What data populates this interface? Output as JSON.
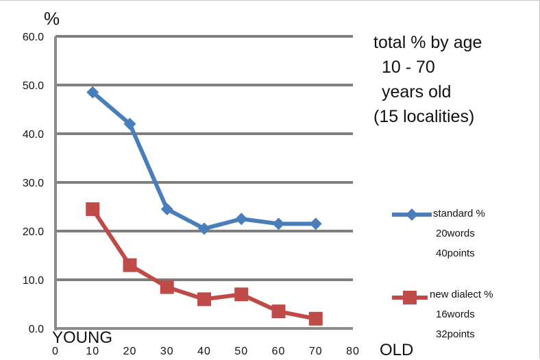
{
  "chart_data": {
    "type": "line",
    "ylabel": "%",
    "xlabel_left": "YOUNG",
    "xlabel_right": "OLD",
    "title_lines": [
      "total % by age",
      "10 - 70",
      "years old",
      "(15 localities)"
    ],
    "xlim": [
      0,
      80
    ],
    "ylim": [
      0,
      60
    ],
    "xticks": [
      "0",
      "10",
      "20",
      "30",
      "40",
      "50",
      "60",
      "70",
      "80"
    ],
    "yticks": [
      "0.0",
      "10.0",
      "20.0",
      "30.0",
      "40.0",
      "50.0",
      "60.0"
    ],
    "grid": true,
    "legend_position": "right",
    "series": [
      {
        "legend_lines": [
          "standard %",
          "20words",
          "40points"
        ],
        "color": "#4a7ebb",
        "marker": "diamond",
        "x": [
          10,
          20,
          30,
          40,
          50,
          60,
          70
        ],
        "y": [
          48.5,
          42.0,
          24.5,
          20.5,
          22.5,
          21.5,
          21.5
        ]
      },
      {
        "legend_lines": [
          "new dialect %",
          "16words",
          "32points"
        ],
        "color": "#be4b48",
        "marker": "square",
        "x": [
          10,
          20,
          30,
          40,
          50,
          60,
          70
        ],
        "y": [
          24.5,
          13.0,
          8.5,
          6.0,
          7.0,
          3.5,
          2.0
        ]
      }
    ]
  }
}
